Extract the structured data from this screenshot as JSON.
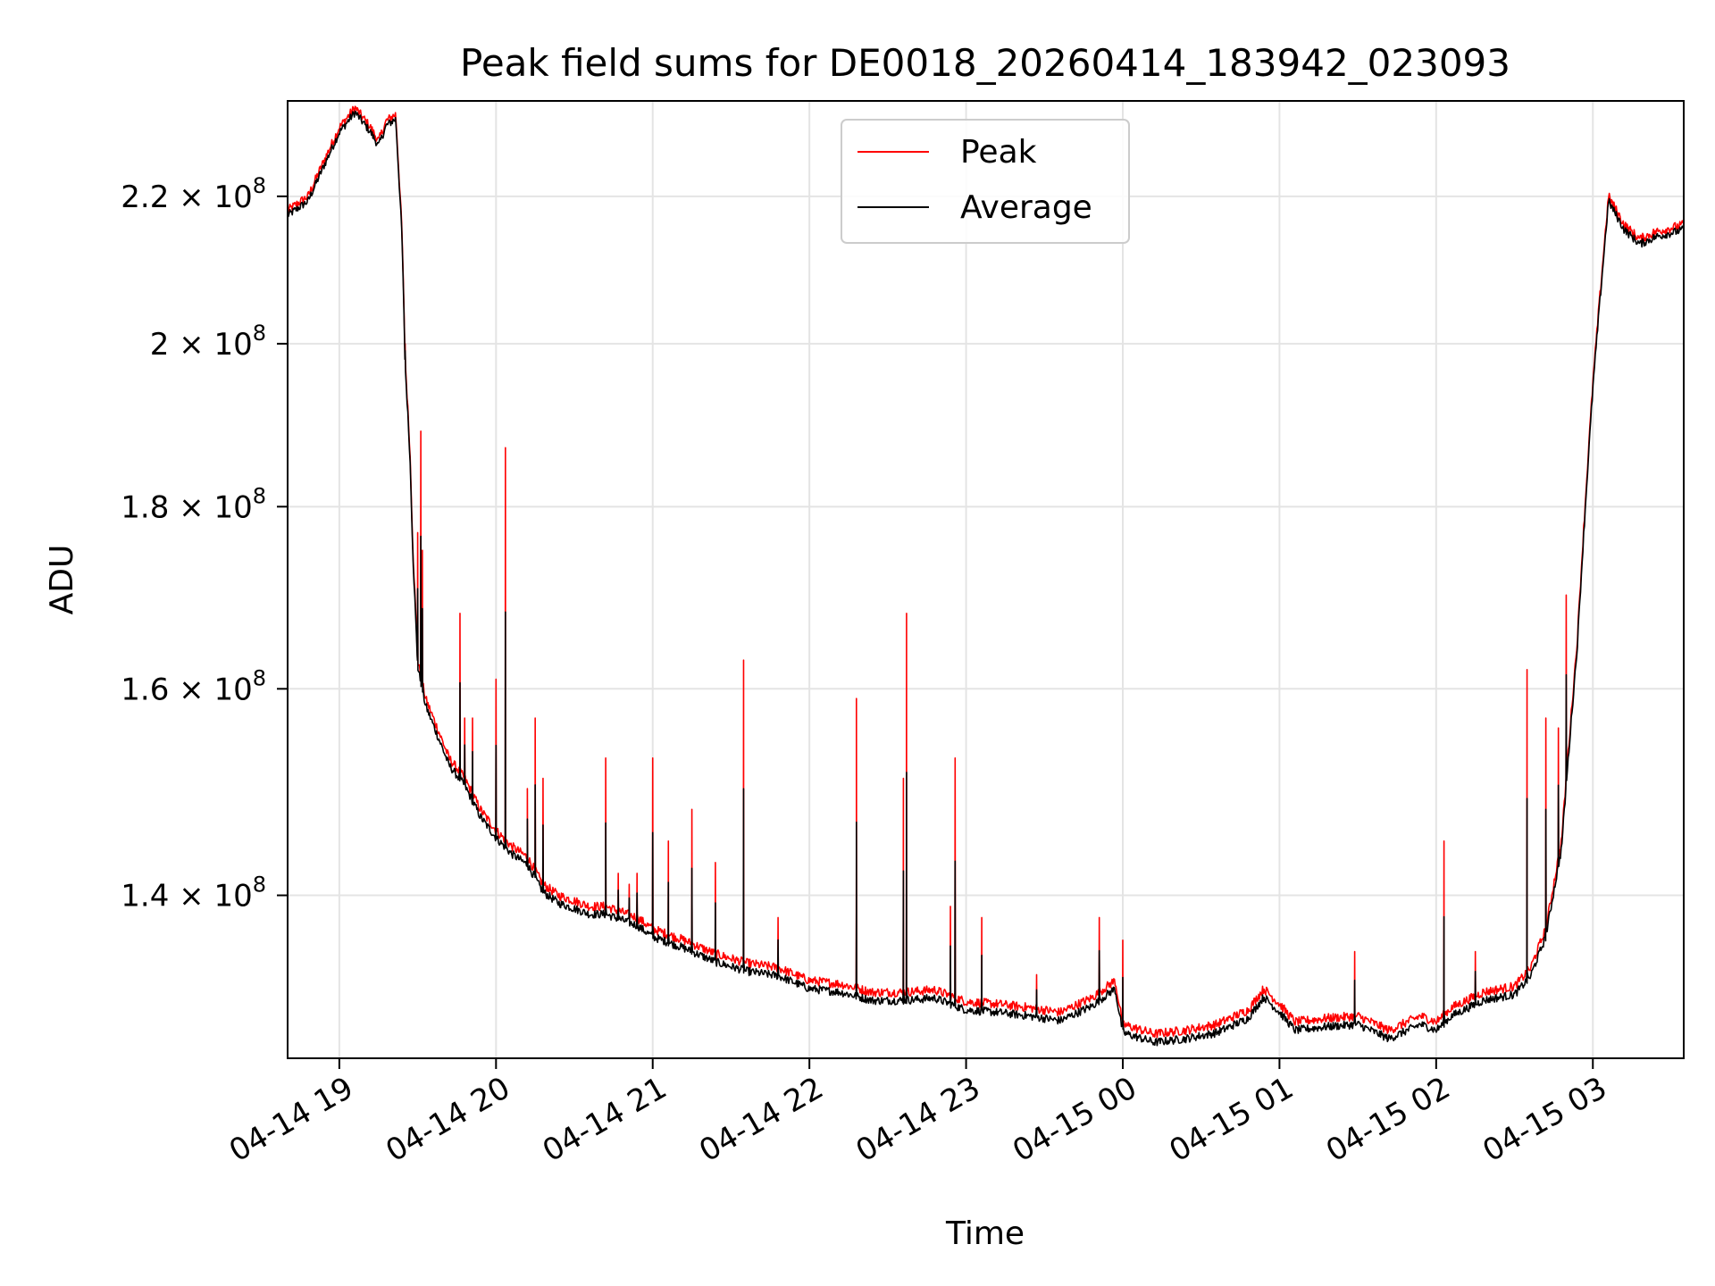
{
  "chart_data": {
    "type": "line",
    "title": "Peak field sums for DE0018_20260414_183942_023093",
    "xlabel": "Time",
    "ylabel": "ADU",
    "y_scale": "log",
    "x_unit": "hours after 2026-04-14 00:00",
    "xlim": [
      18.67,
      27.58
    ],
    "ylim": [
      126000000,
      234000000
    ],
    "grid": true,
    "legend_position": "upper center",
    "x_ticks": [
      {
        "value": 19,
        "label": "04-14 19"
      },
      {
        "value": 20,
        "label": "04-14 20"
      },
      {
        "value": 21,
        "label": "04-14 21"
      },
      {
        "value": 22,
        "label": "04-14 22"
      },
      {
        "value": 23,
        "label": "04-14 23"
      },
      {
        "value": 24,
        "label": "04-15 00"
      },
      {
        "value": 25,
        "label": "04-15 01"
      },
      {
        "value": 26,
        "label": "04-15 02"
      },
      {
        "value": 27,
        "label": "04-15 03"
      }
    ],
    "y_ticks": [
      {
        "value": 140000000,
        "label": "1.4 × 10⁸",
        "mantissa": "1.4",
        "exponent": "8"
      },
      {
        "value": 160000000,
        "label": "1.6 × 10⁸",
        "mantissa": "1.6",
        "exponent": "8"
      },
      {
        "value": 180000000,
        "label": "1.8 × 10⁸",
        "mantissa": "1.8",
        "exponent": "8"
      },
      {
        "value": 200000000,
        "label": "2 × 10⁸",
        "mantissa": "2",
        "exponent": "8"
      },
      {
        "value": 220000000,
        "label": "2.2 × 10⁸",
        "mantissa": "2.2",
        "exponent": "8"
      }
    ],
    "series": [
      {
        "name": "Peak",
        "color": "#ff0000",
        "baseline": [
          [
            18.67,
            218
          ],
          [
            18.8,
            220
          ],
          [
            18.9,
            225
          ],
          [
            19.0,
            230
          ],
          [
            19.1,
            233
          ],
          [
            19.2,
            230
          ],
          [
            19.25,
            228
          ],
          [
            19.3,
            231
          ],
          [
            19.36,
            232
          ],
          [
            19.4,
            215
          ],
          [
            19.42,
            198
          ],
          [
            19.45,
            187
          ],
          [
            19.47,
            175
          ],
          [
            19.5,
            163
          ],
          [
            19.55,
            159
          ],
          [
            19.6,
            157
          ],
          [
            19.7,
            153
          ],
          [
            19.8,
            151
          ],
          [
            19.9,
            148
          ],
          [
            20.0,
            146
          ],
          [
            20.1,
            144.5
          ],
          [
            20.2,
            143.5
          ],
          [
            20.3,
            141
          ],
          [
            20.4,
            140
          ],
          [
            20.5,
            139.5
          ],
          [
            20.6,
            139
          ],
          [
            20.7,
            139
          ],
          [
            20.8,
            138.5
          ],
          [
            20.9,
            138
          ],
          [
            21.0,
            137
          ],
          [
            21.2,
            136
          ],
          [
            21.4,
            134.8
          ],
          [
            21.6,
            134
          ],
          [
            21.8,
            133.6
          ],
          [
            22.0,
            132.5
          ],
          [
            22.2,
            132.2
          ],
          [
            22.4,
            131.5
          ],
          [
            22.6,
            131.5
          ],
          [
            22.8,
            131.7
          ],
          [
            23.0,
            130.7
          ],
          [
            23.2,
            130.5
          ],
          [
            23.4,
            130.2
          ],
          [
            23.6,
            129.8
          ],
          [
            23.8,
            131
          ],
          [
            23.95,
            132.5
          ],
          [
            24.0,
            128.8
          ],
          [
            24.2,
            128
          ],
          [
            24.4,
            128.3
          ],
          [
            24.6,
            128.8
          ],
          [
            24.8,
            130
          ],
          [
            24.9,
            131.8
          ],
          [
            25.0,
            130.5
          ],
          [
            25.1,
            129
          ],
          [
            25.3,
            129.3
          ],
          [
            25.5,
            129.5
          ],
          [
            25.7,
            128.3
          ],
          [
            25.9,
            129.5
          ],
          [
            26.0,
            129
          ],
          [
            26.1,
            130.2
          ],
          [
            26.3,
            131.5
          ],
          [
            26.5,
            132
          ],
          [
            26.6,
            133.5
          ],
          [
            26.7,
            137
          ],
          [
            26.8,
            145
          ],
          [
            26.9,
            165
          ],
          [
            27.0,
            195
          ],
          [
            27.1,
            220
          ],
          [
            27.2,
            216
          ],
          [
            27.3,
            214
          ],
          [
            27.4,
            215
          ],
          [
            27.58,
            216
          ]
        ],
        "spikes": [
          [
            19.42,
            200
          ],
          [
            19.5,
            177
          ],
          [
            19.52,
            189
          ],
          [
            19.53,
            175
          ],
          [
            19.77,
            168
          ],
          [
            19.8,
            157
          ],
          [
            19.85,
            157
          ],
          [
            20.0,
            161
          ],
          [
            20.06,
            187
          ],
          [
            20.2,
            150
          ],
          [
            20.25,
            157
          ],
          [
            20.3,
            151
          ],
          [
            20.7,
            153
          ],
          [
            20.78,
            142
          ],
          [
            20.85,
            141
          ],
          [
            20.9,
            142
          ],
          [
            21.0,
            153
          ],
          [
            21.1,
            145
          ],
          [
            21.25,
            148
          ],
          [
            21.4,
            143
          ],
          [
            21.58,
            163
          ],
          [
            21.8,
            138
          ],
          [
            22.3,
            144
          ],
          [
            22.3,
            159
          ],
          [
            22.6,
            151
          ],
          [
            22.62,
            168
          ],
          [
            22.9,
            139
          ],
          [
            22.93,
            153
          ],
          [
            23.1,
            138
          ],
          [
            23.45,
            133
          ],
          [
            23.85,
            138
          ],
          [
            24.0,
            136
          ],
          [
            25.48,
            135
          ],
          [
            26.05,
            145
          ],
          [
            26.25,
            135
          ],
          [
            26.58,
            162
          ],
          [
            26.7,
            157
          ],
          [
            26.78,
            156
          ],
          [
            26.83,
            170
          ]
        ]
      },
      {
        "name": "Average",
        "color": "#000000",
        "offset_million": -0.7,
        "spike_scale": 0.55
      }
    ]
  }
}
